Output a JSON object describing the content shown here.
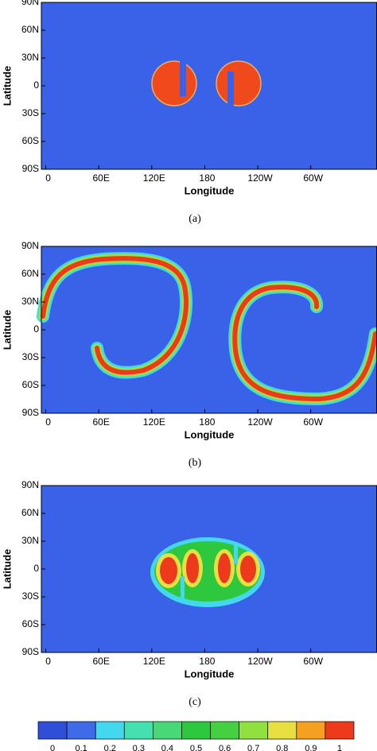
{
  "chart_data": [
    {
      "type": "contour",
      "caption": "(a)",
      "xlabel": "Longitude",
      "ylabel": "Latitude",
      "xlim": [
        -5,
        375
      ],
      "ylim": [
        -90,
        90
      ],
      "xticks": [
        0,
        {
          "value": 60,
          "label": "60E"
        },
        {
          "value": 120,
          "label": "120E"
        },
        180,
        {
          "value": 240,
          "label": "120W"
        },
        {
          "value": 300,
          "label": "60W"
        }
      ],
      "yticks": [
        {
          "value": 90,
          "label": "90N"
        },
        {
          "value": 60,
          "label": "60N"
        },
        {
          "value": 30,
          "label": "30N"
        },
        0,
        {
          "value": -30,
          "label": "30S"
        },
        {
          "value": -60,
          "label": "60S"
        },
        {
          "value": -90,
          "label": "90S"
        }
      ]
    },
    {
      "type": "contour",
      "caption": "(b)",
      "xlabel": "Longitude",
      "ylabel": "Latitude",
      "xlim": [
        -5,
        375
      ],
      "ylim": [
        -90,
        90
      ],
      "xticks": [
        0,
        {
          "value": 60,
          "label": "60E"
        },
        {
          "value": 120,
          "label": "120E"
        },
        180,
        {
          "value": 240,
          "label": "120W"
        },
        {
          "value": 300,
          "label": "60W"
        }
      ],
      "yticks": [
        {
          "value": 90,
          "label": "90N"
        },
        {
          "value": 60,
          "label": "60N"
        },
        {
          "value": 30,
          "label": "30N"
        },
        0,
        {
          "value": -30,
          "label": "30S"
        },
        {
          "value": -60,
          "label": "60S"
        },
        {
          "value": -90,
          "label": "90S"
        }
      ]
    },
    {
      "type": "contour",
      "caption": "(c)",
      "xlabel": "Longitude",
      "ylabel": "Latitude",
      "xlim": [
        -5,
        375
      ],
      "ylim": [
        -90,
        90
      ],
      "xticks": [
        0,
        {
          "value": 60,
          "label": "60E"
        },
        {
          "value": 120,
          "label": "120E"
        },
        180,
        {
          "value": 240,
          "label": "120W"
        },
        {
          "value": 300,
          "label": "60W"
        }
      ],
      "yticks": [
        {
          "value": 90,
          "label": "90N"
        },
        {
          "value": 60,
          "label": "60N"
        },
        {
          "value": 30,
          "label": "30N"
        },
        0,
        {
          "value": -30,
          "label": "30S"
        },
        {
          "value": -60,
          "label": "60S"
        },
        {
          "value": -90,
          "label": "90S"
        }
      ]
    }
  ],
  "colorbar": {
    "ticks": [
      0,
      0.1,
      0.2,
      0.3,
      0.4,
      0.5,
      0.6,
      0.7,
      0.8,
      0.9,
      1
    ],
    "colors": [
      "#2f4fd8",
      "#3f6ae8",
      "#44d8f0",
      "#44e0b0",
      "#48d878",
      "#2ec83e",
      "#44d040",
      "#90e040",
      "#e8e040",
      "#f5a020",
      "#ee3a1c"
    ]
  }
}
